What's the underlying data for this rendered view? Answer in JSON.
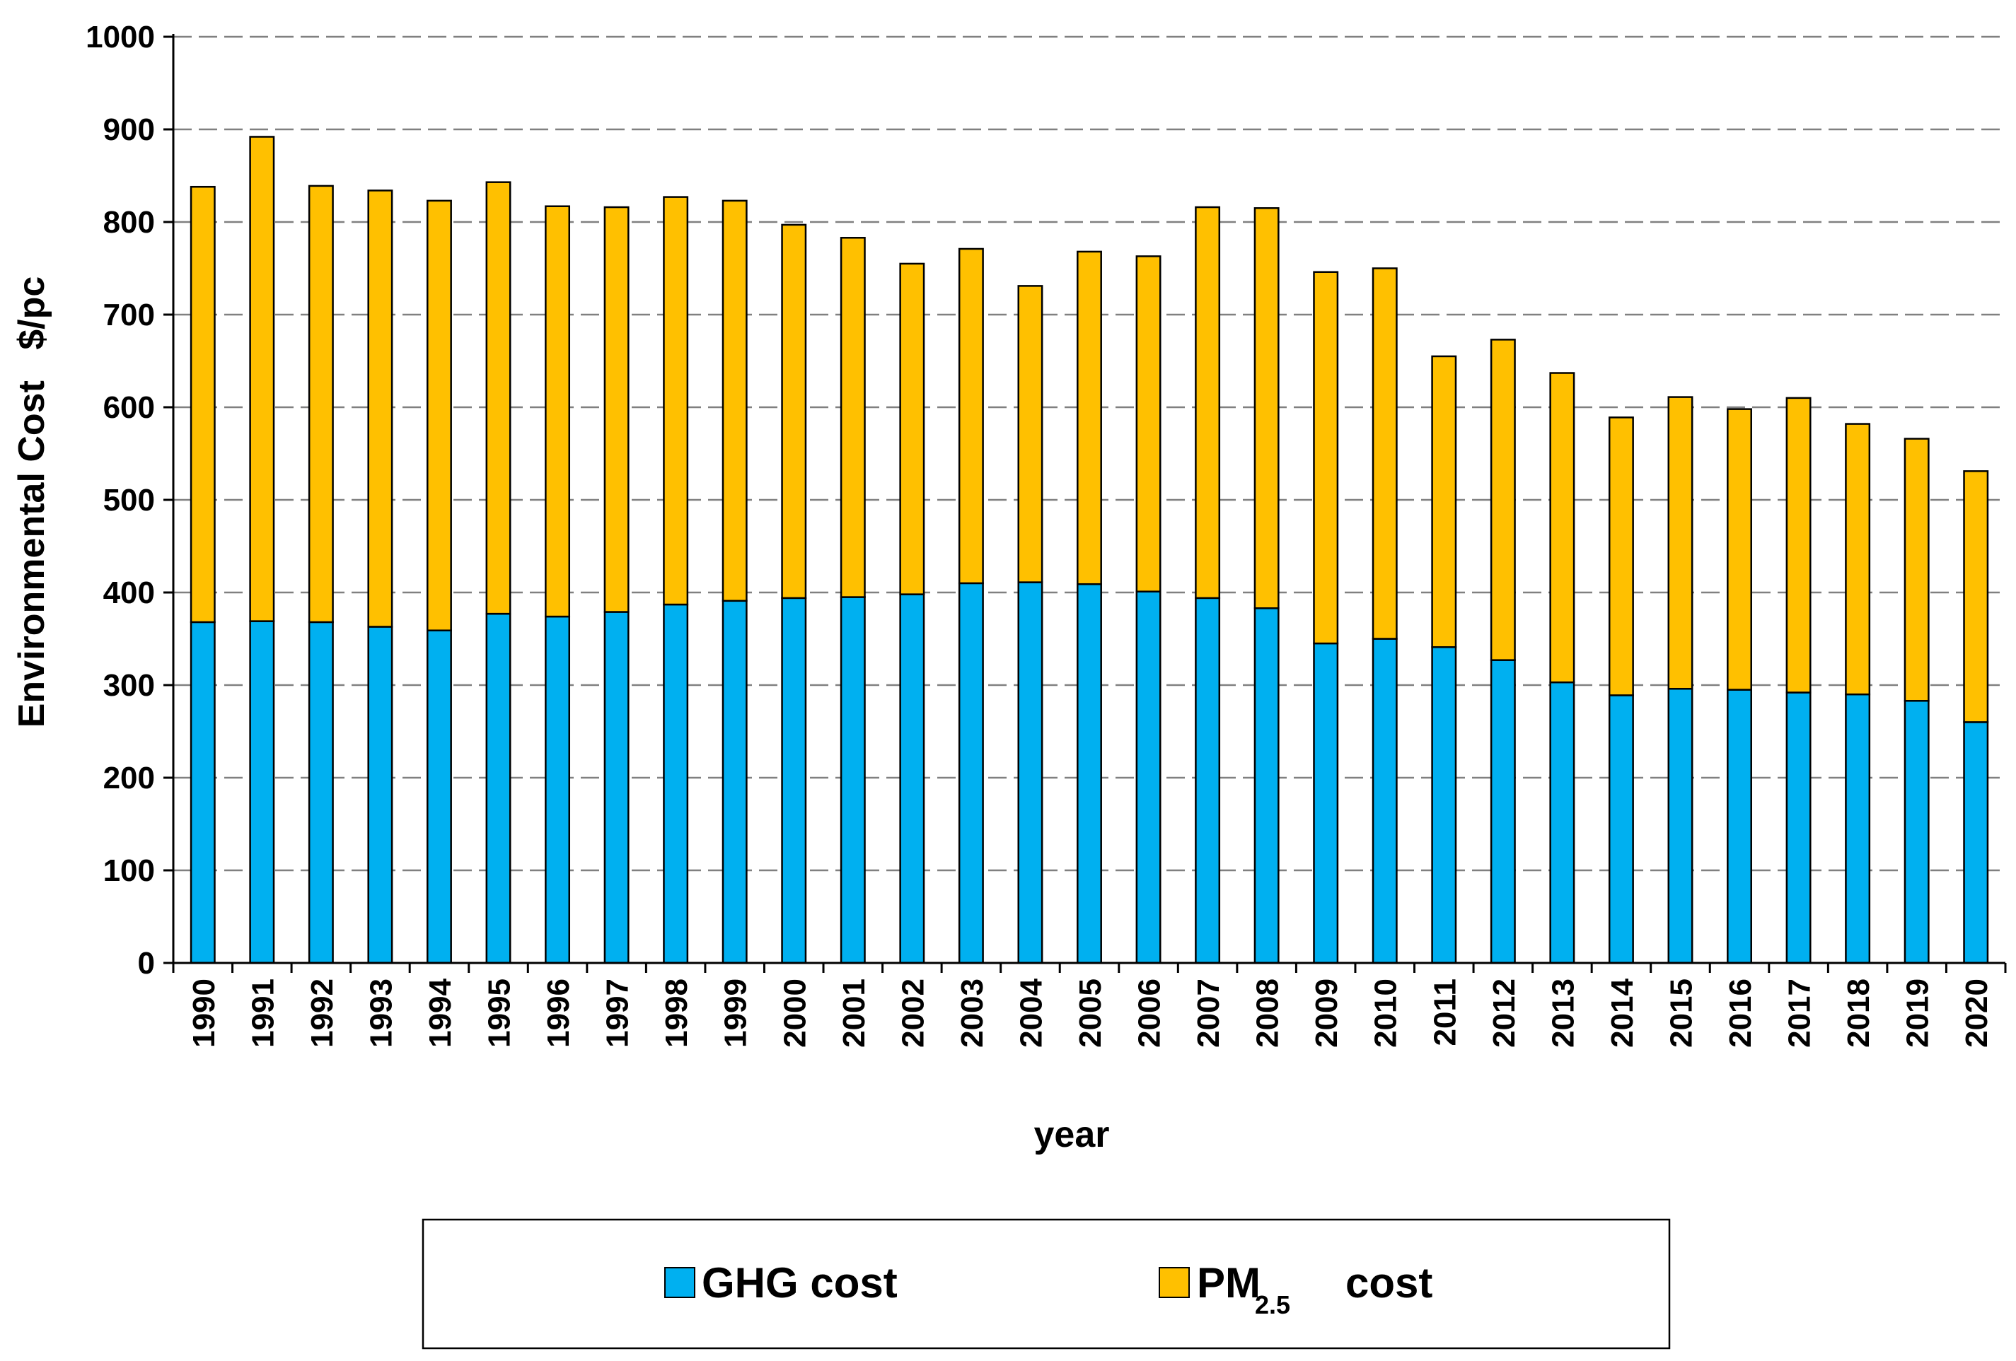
{
  "chart_data": {
    "type": "bar",
    "stacked": true,
    "categories": [
      "1990",
      "1991",
      "1992",
      "1993",
      "1994",
      "1995",
      "1996",
      "1997",
      "1998",
      "1999",
      "2000",
      "2001",
      "2002",
      "2003",
      "2004",
      "2005",
      "2006",
      "2007",
      "2008",
      "2009",
      "2010",
      "2011",
      "2012",
      "2013",
      "2014",
      "2015",
      "2016",
      "2017",
      "2018",
      "2019",
      "2020"
    ],
    "series": [
      {
        "name": "GHG cost",
        "color": "#00b0f0",
        "values": [
          368,
          369,
          368,
          363,
          359,
          377,
          374,
          379,
          387,
          391,
          394,
          395,
          398,
          410,
          411,
          409,
          401,
          394,
          383,
          345,
          350,
          341,
          327,
          303,
          289,
          296,
          295,
          292,
          290,
          283,
          260
        ]
      },
      {
        "name": "PM2.5 cost",
        "color": "#ffc000",
        "values": [
          470,
          523,
          471,
          471,
          464,
          466,
          443,
          437,
          440,
          432,
          403,
          388,
          357,
          361,
          320,
          359,
          362,
          422,
          432,
          401,
          400,
          314,
          346,
          334,
          300,
          315,
          303,
          318,
          292,
          283,
          271
        ]
      }
    ],
    "legend": {
      "ghg_label": "GHG cost",
      "pm_main": "PM",
      "pm_sub": "2.5",
      "pm_suffix": "cost"
    },
    "xlabel": "year",
    "ylabel": "Environmental Cost   $/pc",
    "ylim": [
      0,
      1000
    ],
    "yticks": [
      0,
      100,
      200,
      300,
      400,
      500,
      600,
      700,
      800,
      900,
      1000
    ],
    "grid": "horizontal-dashed",
    "legend_position": "bottom"
  }
}
